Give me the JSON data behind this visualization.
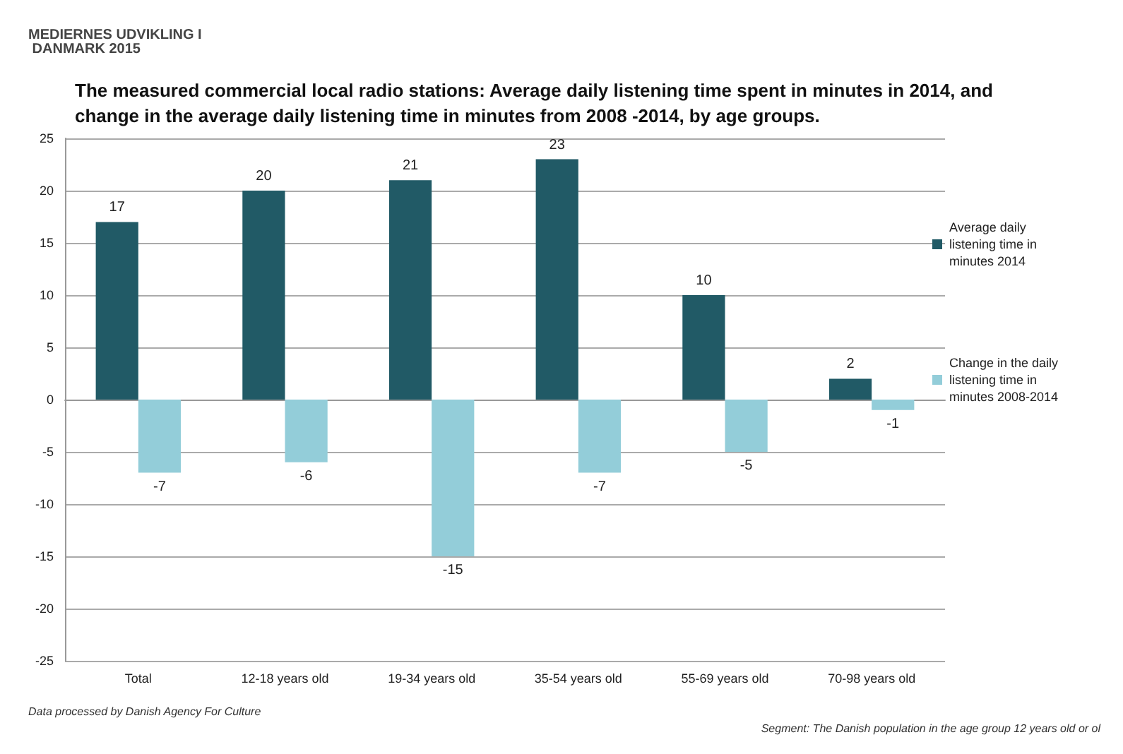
{
  "chart_data": {
    "type": "bar",
    "title": "The measured commercial local radio stations: Average daily listening time spent in minutes in 2014, and change in the average daily listening time in minutes from 2008 -2014, by age groups.",
    "subtitle": "MEDIERNES UDVIKLING I DANMARK 2015",
    "categories": [
      "Total",
      "12-18 years old",
      "19-34 years old",
      "35-54 years old",
      "55-69 years old",
      "70-98 years old"
    ],
    "series": [
      {
        "name": "Average daily listening time in minutes 2014",
        "color": "#215a66",
        "values": [
          17,
          20,
          21,
          23,
          10,
          2
        ]
      },
      {
        "name": "Change in the daily listening time in minutes 2008-2014",
        "color": "#93cdd9",
        "values": [
          -7,
          -6,
          -15,
          -7,
          -5,
          -1
        ]
      }
    ],
    "ylim": [
      -25,
      25
    ],
    "yticks": [
      -25,
      -20,
      -15,
      -10,
      -5,
      0,
      5,
      10,
      15,
      20,
      25
    ],
    "grid": "y",
    "legend": "right",
    "data_labels": true,
    "annotations": [
      "Data processed by Danish Agency For Culture",
      "Segment: The Danish population in the age group 12 years old or ol"
    ]
  }
}
